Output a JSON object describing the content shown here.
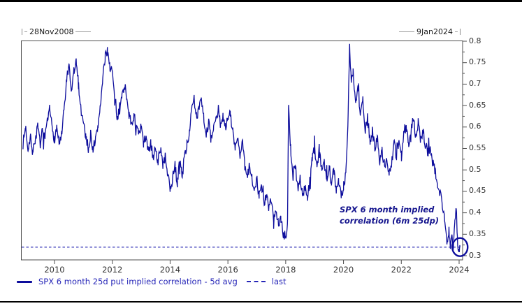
{
  "header": {
    "start_date": "28Nov2008",
    "end_date": "9Jan2024"
  },
  "legend": {
    "series_label": "SPX 6 month 25d put implied correlation - 5d avg",
    "last_label": "last"
  },
  "annotation": {
    "line1": "SPX 6 month implied",
    "line2": "correlation (6m 25dp)"
  },
  "colors": {
    "background": "#ffffff",
    "rule": "#000000",
    "line": "#0d0d9c",
    "last_line": "#2a2ab4",
    "legend_text": "#2727b8",
    "annotation_text": "#15158e",
    "axis_text": "#333333",
    "plot_border": "#4d4d4d",
    "range_text": "#1a1a1a",
    "circle": "#0d0d9c"
  },
  "chart_data": {
    "type": "line",
    "title": "",
    "xlabel": "",
    "ylabel": "",
    "grid": false,
    "legend_position": "bottom",
    "xlim": [
      2008.906,
      2024.12
    ],
    "ylim": [
      0.29,
      0.8
    ],
    "x_ticks": [
      2010,
      2012,
      2014,
      2016,
      2018,
      2020,
      2022,
      2024
    ],
    "y_ticks": [
      0.8,
      0.75,
      0.7,
      0.65,
      0.6,
      0.55,
      0.5,
      0.45,
      0.4,
      0.35,
      0.3
    ],
    "y_minor_step": 0.025,
    "last_value": 0.32,
    "series": [
      {
        "name": "SPX 6 month 25d put implied correlation - 5d avg",
        "anchors": [
          [
            2008.91,
            0.56
          ],
          [
            2009.0,
            0.6
          ],
          [
            2009.08,
            0.55
          ],
          [
            2009.17,
            0.58
          ],
          [
            2009.25,
            0.54
          ],
          [
            2009.33,
            0.57
          ],
          [
            2009.42,
            0.6
          ],
          [
            2009.5,
            0.56
          ],
          [
            2009.58,
            0.59
          ],
          [
            2009.67,
            0.57
          ],
          [
            2009.75,
            0.61
          ],
          [
            2009.83,
            0.64
          ],
          [
            2009.92,
            0.6
          ],
          [
            2010.0,
            0.57
          ],
          [
            2010.08,
            0.6
          ],
          [
            2010.17,
            0.56
          ],
          [
            2010.25,
            0.58
          ],
          [
            2010.33,
            0.64
          ],
          [
            2010.42,
            0.71
          ],
          [
            2010.5,
            0.74
          ],
          [
            2010.58,
            0.68
          ],
          [
            2010.67,
            0.73
          ],
          [
            2010.75,
            0.75
          ],
          [
            2010.83,
            0.7
          ],
          [
            2010.92,
            0.64
          ],
          [
            2011.0,
            0.61
          ],
          [
            2011.08,
            0.58
          ],
          [
            2011.17,
            0.55
          ],
          [
            2011.25,
            0.58
          ],
          [
            2011.33,
            0.55
          ],
          [
            2011.42,
            0.57
          ],
          [
            2011.5,
            0.6
          ],
          [
            2011.58,
            0.65
          ],
          [
            2011.67,
            0.71
          ],
          [
            2011.75,
            0.76
          ],
          [
            2011.83,
            0.78
          ],
          [
            2011.92,
            0.74
          ],
          [
            2012.0,
            0.73
          ],
          [
            2012.08,
            0.66
          ],
          [
            2012.17,
            0.62
          ],
          [
            2012.25,
            0.64
          ],
          [
            2012.33,
            0.67
          ],
          [
            2012.42,
            0.7
          ],
          [
            2012.5,
            0.67
          ],
          [
            2012.58,
            0.63
          ],
          [
            2012.67,
            0.6
          ],
          [
            2012.75,
            0.63
          ],
          [
            2012.83,
            0.6
          ],
          [
            2012.92,
            0.58
          ],
          [
            2013.0,
            0.6
          ],
          [
            2013.08,
            0.56
          ],
          [
            2013.17,
            0.58
          ],
          [
            2013.25,
            0.54
          ],
          [
            2013.33,
            0.56
          ],
          [
            2013.42,
            0.53
          ],
          [
            2013.5,
            0.55
          ],
          [
            2013.58,
            0.52
          ],
          [
            2013.67,
            0.55
          ],
          [
            2013.75,
            0.51
          ],
          [
            2013.83,
            0.53
          ],
          [
            2013.92,
            0.49
          ],
          [
            2014.0,
            0.45
          ],
          [
            2014.08,
            0.48
          ],
          [
            2014.17,
            0.51
          ],
          [
            2014.25,
            0.47
          ],
          [
            2014.33,
            0.52
          ],
          [
            2014.42,
            0.49
          ],
          [
            2014.5,
            0.53
          ],
          [
            2014.58,
            0.56
          ],
          [
            2014.67,
            0.59
          ],
          [
            2014.75,
            0.64
          ],
          [
            2014.83,
            0.66
          ],
          [
            2014.92,
            0.62
          ],
          [
            2015.0,
            0.65
          ],
          [
            2015.08,
            0.67
          ],
          [
            2015.17,
            0.62
          ],
          [
            2015.25,
            0.58
          ],
          [
            2015.33,
            0.61
          ],
          [
            2015.42,
            0.57
          ],
          [
            2015.5,
            0.59
          ],
          [
            2015.58,
            0.62
          ],
          [
            2015.67,
            0.64
          ],
          [
            2015.75,
            0.6
          ],
          [
            2015.83,
            0.63
          ],
          [
            2015.92,
            0.6
          ],
          [
            2016.0,
            0.62
          ],
          [
            2016.08,
            0.63
          ],
          [
            2016.17,
            0.59
          ],
          [
            2016.25,
            0.55
          ],
          [
            2016.33,
            0.58
          ],
          [
            2016.42,
            0.53
          ],
          [
            2016.5,
            0.56
          ],
          [
            2016.58,
            0.51
          ],
          [
            2016.67,
            0.48
          ],
          [
            2016.75,
            0.51
          ],
          [
            2016.83,
            0.48
          ],
          [
            2016.92,
            0.46
          ],
          [
            2017.0,
            0.48
          ],
          [
            2017.08,
            0.44
          ],
          [
            2017.17,
            0.46
          ],
          [
            2017.25,
            0.42
          ],
          [
            2017.33,
            0.44
          ],
          [
            2017.42,
            0.41
          ],
          [
            2017.5,
            0.43
          ],
          [
            2017.58,
            0.39
          ],
          [
            2017.67,
            0.41
          ],
          [
            2017.75,
            0.37
          ],
          [
            2017.83,
            0.39
          ],
          [
            2017.92,
            0.35
          ],
          [
            2018.0,
            0.34
          ],
          [
            2018.06,
            0.37
          ],
          [
            2018.1,
            0.65
          ],
          [
            2018.17,
            0.55
          ],
          [
            2018.25,
            0.48
          ],
          [
            2018.33,
            0.51
          ],
          [
            2018.42,
            0.46
          ],
          [
            2018.5,
            0.48
          ],
          [
            2018.58,
            0.44
          ],
          [
            2018.67,
            0.46
          ],
          [
            2018.75,
            0.43
          ],
          [
            2018.83,
            0.47
          ],
          [
            2018.92,
            0.53
          ],
          [
            2019.0,
            0.55
          ],
          [
            2019.08,
            0.51
          ],
          [
            2019.17,
            0.54
          ],
          [
            2019.25,
            0.5
          ],
          [
            2019.33,
            0.52
          ],
          [
            2019.42,
            0.48
          ],
          [
            2019.5,
            0.51
          ],
          [
            2019.58,
            0.47
          ],
          [
            2019.67,
            0.5
          ],
          [
            2019.75,
            0.45
          ],
          [
            2019.83,
            0.48
          ],
          [
            2019.92,
            0.44
          ],
          [
            2020.0,
            0.46
          ],
          [
            2020.08,
            0.49
          ],
          [
            2020.15,
            0.6
          ],
          [
            2020.21,
            0.79
          ],
          [
            2020.27,
            0.7
          ],
          [
            2020.33,
            0.73
          ],
          [
            2020.42,
            0.66
          ],
          [
            2020.5,
            0.69
          ],
          [
            2020.58,
            0.63
          ],
          [
            2020.67,
            0.66
          ],
          [
            2020.75,
            0.59
          ],
          [
            2020.83,
            0.62
          ],
          [
            2020.92,
            0.57
          ],
          [
            2021.0,
            0.59
          ],
          [
            2021.08,
            0.55
          ],
          [
            2021.17,
            0.58
          ],
          [
            2021.25,
            0.52
          ],
          [
            2021.33,
            0.55
          ],
          [
            2021.42,
            0.5
          ],
          [
            2021.5,
            0.53
          ],
          [
            2021.58,
            0.49
          ],
          [
            2021.67,
            0.52
          ],
          [
            2021.75,
            0.56
          ],
          [
            2021.83,
            0.53
          ],
          [
            2021.92,
            0.56
          ],
          [
            2022.0,
            0.54
          ],
          [
            2022.08,
            0.58
          ],
          [
            2022.17,
            0.6
          ],
          [
            2022.25,
            0.56
          ],
          [
            2022.33,
            0.59
          ],
          [
            2022.42,
            0.62
          ],
          [
            2022.5,
            0.58
          ],
          [
            2022.58,
            0.61
          ],
          [
            2022.67,
            0.57
          ],
          [
            2022.75,
            0.59
          ],
          [
            2022.83,
            0.56
          ],
          [
            2022.92,
            0.54
          ],
          [
            2023.0,
            0.55
          ],
          [
            2023.08,
            0.52
          ],
          [
            2023.17,
            0.5
          ],
          [
            2023.25,
            0.47
          ],
          [
            2023.33,
            0.45
          ],
          [
            2023.42,
            0.42
          ],
          [
            2023.5,
            0.38
          ],
          [
            2023.58,
            0.335
          ],
          [
            2023.65,
            0.36
          ],
          [
            2023.7,
            0.32
          ],
          [
            2023.75,
            0.35
          ],
          [
            2023.8,
            0.315
          ],
          [
            2023.85,
            0.37
          ],
          [
            2023.9,
            0.41
          ],
          [
            2023.94,
            0.34
          ],
          [
            2023.98,
            0.315
          ],
          [
            2024.03,
            0.32
          ]
        ]
      }
    ],
    "noise": {
      "seed": 7,
      "amplitude": 0.012,
      "spike_prob": 0.05,
      "spike_amplitude": 0.028,
      "steps_per_year": 52
    }
  }
}
